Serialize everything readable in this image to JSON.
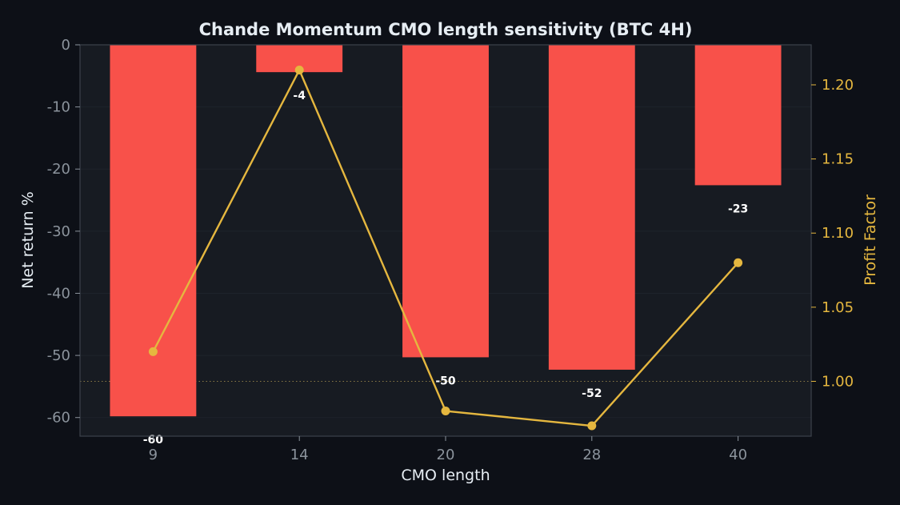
{
  "chart_data": {
    "type": "bar",
    "title": "Chande Momentum CMO length sensitivity (BTC 4H)",
    "xlabel": "CMO length",
    "ylabel": "Net return %",
    "y2label": "Profit Factor",
    "categories": [
      "9",
      "14",
      "20",
      "28",
      "40"
    ],
    "series": [
      {
        "type": "bar",
        "axis": "left",
        "values": [
          -59.8,
          -4.4,
          -50.3,
          -52.3,
          -22.6
        ],
        "labels": [
          "-60",
          "-4",
          "-50",
          "-52",
          "-23"
        ]
      },
      {
        "type": "line",
        "axis": "right",
        "values": [
          1.02,
          1.21,
          0.98,
          0.97,
          1.08
        ]
      }
    ],
    "ylim": [
      -63,
      0
    ],
    "yticks": [
      0,
      -10,
      -20,
      -30,
      -40,
      -50,
      -60
    ],
    "y2lim": [
      0.963,
      1.227
    ],
    "y2ticks": [
      1.0,
      1.05,
      1.1,
      1.15,
      1.2
    ],
    "y2tick_labels": [
      "1.00",
      "1.05",
      "1.10",
      "1.15",
      "1.20"
    ],
    "reference_line_y2": 1.0,
    "grid": true,
    "colors": {
      "page_bg": "#0d1017",
      "plot_bg": "#171b22",
      "bar": "#f8514a",
      "line": "#e5b73f",
      "left_axis_text": "#8b939c",
      "right_axis_text": "#e5b73f",
      "title_text": "#e6edf3",
      "axis_line": "#3c434c",
      "grid": "#1e232b",
      "bar_label": "#ffffff",
      "reference_line": "#8a7a45"
    }
  }
}
